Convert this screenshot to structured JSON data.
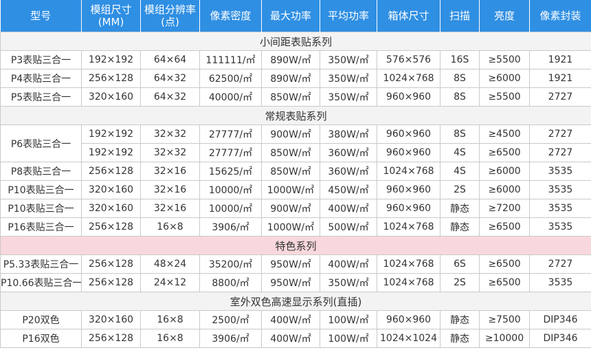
{
  "table": {
    "header": [
      "型号",
      "模组尺寸\n(MM)",
      "模组分辨率\n(点)",
      "像素密度",
      "最大功率",
      "平均功率",
      "箱体尺寸",
      "扫描",
      "亮度",
      "像素封装"
    ],
    "sections": [
      {
        "title": "小间距表贴系列",
        "rows": [
          [
            "P3表贴三合一",
            "192×192",
            "64×64",
            "111111/㎡",
            "890W/㎡",
            "350W/㎡",
            "576×576",
            "16S",
            "≥5500",
            "1921"
          ],
          [
            "P4表贴三合一",
            "256×128",
            "64×32",
            "62500/㎡",
            "890W/㎡",
            "350W/㎡",
            "1024×768",
            "8S",
            "≥6000",
            "1921"
          ],
          [
            "P5表贴三合一",
            "320×160",
            "64×32",
            "40000/㎡",
            "850W/㎡",
            "350W/㎡",
            "960×960",
            "8S",
            "≥5500",
            "2727"
          ]
        ]
      },
      {
        "title": "常规表贴系列",
        "rows": [
          [
            "P6表贴三合一",
            "192×192",
            "32×32",
            "27777/㎡",
            "900W/㎡",
            "380W/㎡",
            "960×960",
            "8S",
            "≥4500",
            "2727"
          ],
          [
            null,
            "192×192",
            "32×32",
            "27777/㎡",
            "850W/㎡",
            "360W/㎡",
            "960×960",
            "4S",
            "≥6500",
            "2727"
          ],
          [
            "P8表贴三合一",
            "256×128",
            "32×16",
            "15625/㎡",
            "850W/㎡",
            "360W/㎡",
            "1024×768",
            "4S",
            "≥6000",
            "3535"
          ],
          [
            "P10表贴三合一",
            "320×160",
            "32×16",
            "10000/㎡",
            "1000W/㎡",
            "450W/㎡",
            "960×960",
            "2S",
            "≥6000",
            "3535"
          ],
          [
            "P10表贴三合一",
            "320×160",
            "32×16",
            "10000/㎡",
            "900W/㎡",
            "400W/㎡",
            "960×960",
            "静态",
            "≥7200",
            "3535"
          ],
          [
            "P16表贴三合一",
            "256×128",
            "16×8",
            "3906/㎡",
            "1000W/㎡",
            "500W/㎡",
            "1024×768",
            "静态",
            "≥6500",
            "3535"
          ]
        ]
      },
      {
        "title": "特色系列",
        "rows": [
          [
            "P5.33表贴三合一",
            "256×128",
            "48×24",
            "35200/㎡",
            "950W/㎡",
            "400W/㎡",
            "1024×768",
            "6S",
            "≥6500",
            "2727"
          ],
          [
            "P10.66表贴三合一",
            "256×128",
            "24×12",
            "8800/㎡",
            "950W/㎡",
            "350W/㎡",
            "1024×768",
            "2S",
            "≥6500",
            "3535"
          ]
        ]
      },
      {
        "title": "室外双色高速显示系列(直插)",
        "rows": [
          [
            "P20双色",
            "320×160",
            "16×8",
            "2500/㎡",
            "400W/㎡",
            "100W/㎡",
            "960×960",
            "静态",
            "≥7500",
            "DIP346"
          ],
          [
            "P16双色",
            "256×128",
            "16×8",
            "3906/㎡",
            "400W/㎡",
            "100W/㎡",
            "1024×1024",
            "静态",
            "≥10000",
            "DIP346"
          ]
        ]
      }
    ]
  }
}
